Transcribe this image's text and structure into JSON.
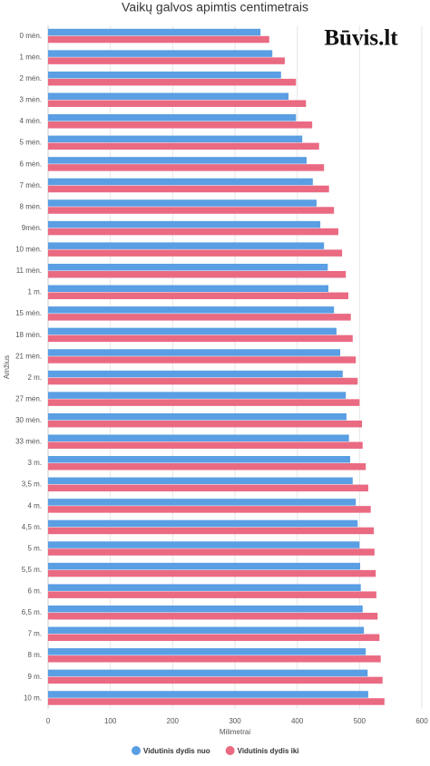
{
  "chart_data": {
    "type": "hbar",
    "title": "Vaikų galvos apimtis centimetrais",
    "logo": "Būvis.lt",
    "xlabel": "Milimetrai",
    "ylabel": "Amžius",
    "categories": [
      "0 mėn.",
      "1 mėn.",
      "2 mėn.",
      "3 mėn.",
      "4 mėn.",
      "5 mėn.",
      "6 mėn.",
      "7 mėn.",
      "8 mėn.",
      "9mėn.",
      "10 mėn.",
      "11 mėn.",
      "1 m.",
      "15 mėn.",
      "18 mėn.",
      "21 mėn.",
      "2 m.",
      "27 mėn.",
      "30 mėn.",
      "33 mėn.",
      "3 m.",
      "3,5 m.",
      "4 m.",
      "4,5 m.",
      "5 m.",
      "5,5 m.",
      "6 m.",
      "6,5 m.",
      "7 m.",
      "8 m.",
      "9 m.",
      "10 m."
    ],
    "series": [
      {
        "name": "Vidutinis dydis nuo",
        "color": "#5a9ee3",
        "values": [
          341,
          360,
          374,
          386,
          398,
          408,
          415,
          425,
          431,
          437,
          443,
          449,
          450,
          459,
          463,
          469,
          473,
          478,
          479,
          483,
          485,
          489,
          494,
          497,
          500,
          501,
          502,
          505,
          507,
          510,
          513,
          514
        ]
      },
      {
        "name": "Vidutinis dydis iki",
        "color": "#ea6a82",
        "values": [
          355,
          380,
          398,
          414,
          424,
          435,
          443,
          451,
          459,
          466,
          472,
          478,
          482,
          486,
          489,
          494,
          497,
          500,
          504,
          505,
          510,
          514,
          518,
          523,
          524,
          526,
          527,
          529,
          532,
          534,
          537,
          540
        ]
      }
    ],
    "xlim": [
      0,
      600
    ],
    "xticks": [
      0,
      100,
      200,
      300,
      400,
      500,
      600
    ],
    "grid": true
  }
}
